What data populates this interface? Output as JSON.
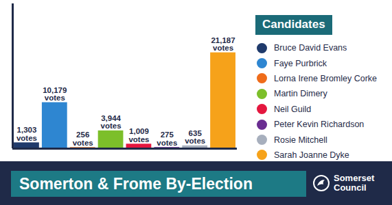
{
  "chart_data": {
    "type": "bar",
    "title": "Somerton & Frome By-Election",
    "legend_title": "Candidates",
    "credit": "Somerset Council",
    "categories": [
      "Bruce David Evans",
      "Faye Purbrick",
      "Lorna Irene Bromley Corke",
      "Martin Dimery",
      "Neil Guild",
      "Peter Kevin Richardson",
      "Rosie Mitchell",
      "Sarah Joanne Dyke"
    ],
    "values": [
      1303,
      10179,
      256,
      3944,
      1009,
      275,
      635,
      21187
    ],
    "value_labels": [
      "1,303\nvotes",
      "10,179\nvotes",
      "256\nvotes",
      "3,944\nvotes",
      "1,009\nvotes",
      "275\nvotes",
      "635\nvotes",
      "21,187\nvotes"
    ],
    "colors": [
      "#1f3a6b",
      "#2e86d1",
      "#ef6c1a",
      "#7cbf2a",
      "#e4173f",
      "#6a2d91",
      "#a7afbd",
      "#f6a21a"
    ],
    "ylim": [
      0,
      32000
    ],
    "yticks": [],
    "grid": false,
    "legend": "right",
    "data_labels": true,
    "tick_labels": false
  }
}
